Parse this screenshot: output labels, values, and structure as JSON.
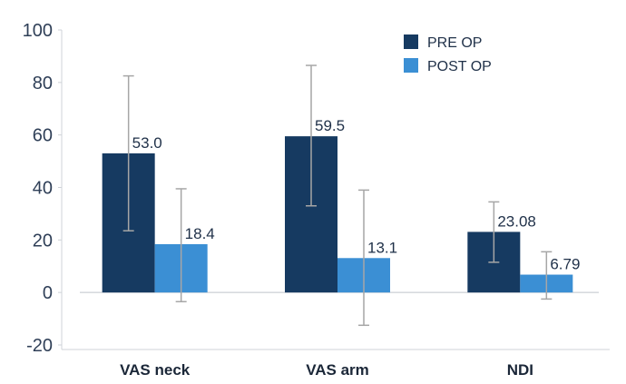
{
  "chart_data": {
    "type": "bar",
    "categories": [
      "VAS neck",
      "VAS arm",
      "NDI"
    ],
    "series": [
      {
        "name": "PRE OP",
        "color": "#163a61",
        "values": [
          53.0,
          59.5,
          23.08
        ],
        "labels": [
          "53.0",
          "59.5",
          "23.08"
        ],
        "error_low": [
          23.5,
          33.0,
          11.5
        ],
        "error_high": [
          82.5,
          86.5,
          34.5
        ]
      },
      {
        "name": "POST OP",
        "color": "#3b8fd4",
        "values": [
          18.4,
          13.1,
          6.79
        ],
        "labels": [
          "18.4",
          "13.1",
          "6.79"
        ],
        "error_low": [
          -3.5,
          -12.5,
          -2.5
        ],
        "error_high": [
          39.5,
          39.0,
          15.5
        ]
      }
    ],
    "ylim": [
      -20,
      100
    ],
    "yticks": [
      "-20",
      "0",
      "20",
      "40",
      "60",
      "80",
      "100"
    ],
    "title": "",
    "xlabel": "",
    "ylabel": "",
    "legend_position": "top-right",
    "grid": false,
    "error_bar_color": "#a6a6a6"
  }
}
